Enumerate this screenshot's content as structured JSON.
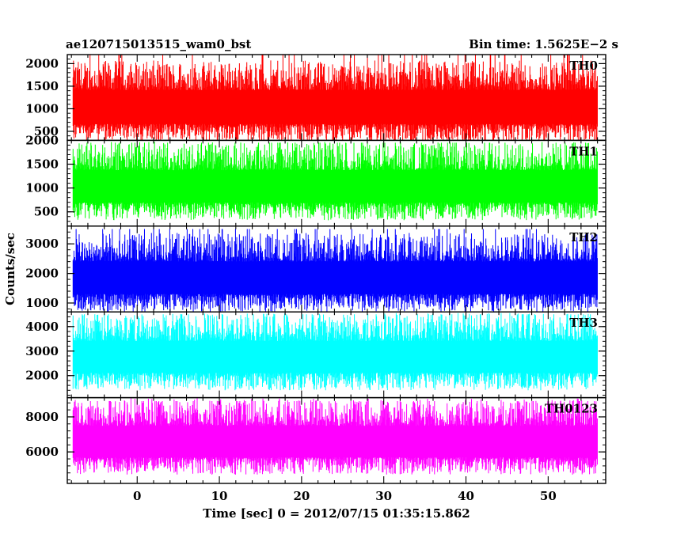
{
  "header": {
    "left_title": "ae120715013515_wam0_bst",
    "right_title": "Bin time: 1.5625E−2 s"
  },
  "axes": {
    "ylabel": "Counts/sec",
    "xlabel": "Time [sec] 0 = 2012/07/15 01:35:15.862"
  },
  "chart_data": {
    "type": "line",
    "xlim": [
      -8.5,
      57
    ],
    "x_range_of_data": [
      -7.8,
      56
    ],
    "x_ticks": [
      0,
      10,
      20,
      30,
      40,
      50
    ],
    "x_tick_labels": [
      "0",
      "10",
      "20",
      "30",
      "40",
      "50"
    ],
    "grid": false,
    "panels": [
      {
        "name": "TH0",
        "color": "#ff0000",
        "ylim": [
          300,
          2200
        ],
        "y_ticks": [
          500,
          1000,
          1500,
          2000
        ],
        "y_tick_labels": [
          "500",
          "1000",
          "1500",
          "2000"
        ],
        "mean": 1000,
        "low": 320,
        "high": 2200
      },
      {
        "name": "TH1",
        "color": "#00ff00",
        "ylim": [
          200,
          2000
        ],
        "y_ticks": [
          500,
          1000,
          1500,
          2000
        ],
        "y_tick_labels": [
          "500",
          "1000",
          "1500",
          "2000"
        ],
        "mean": 1000,
        "low": 250,
        "high": 1950
      },
      {
        "name": "TH2",
        "color": "#0000ff",
        "ylim": [
          700,
          3600
        ],
        "y_ticks": [
          1000,
          2000,
          3000
        ],
        "y_tick_labels": [
          "1000",
          "2000",
          "3000"
        ],
        "mean": 1800,
        "low": 750,
        "high": 3500
      },
      {
        "name": "TH3",
        "color": "#00ffff",
        "ylim": [
          1100,
          4600
        ],
        "y_ticks": [
          2000,
          3000,
          4000
        ],
        "y_tick_labels": [
          "2000",
          "3000",
          "4000"
        ],
        "mean": 2700,
        "low": 1250,
        "high": 4500
      },
      {
        "name": "TH0123",
        "color": "#ff00ff",
        "ylim": [
          4200,
          9100
        ],
        "y_ticks": [
          6000,
          8000
        ],
        "y_tick_labels": [
          "6000",
          "8000"
        ],
        "mean": 6500,
        "low": 4400,
        "high": 8900
      }
    ]
  }
}
